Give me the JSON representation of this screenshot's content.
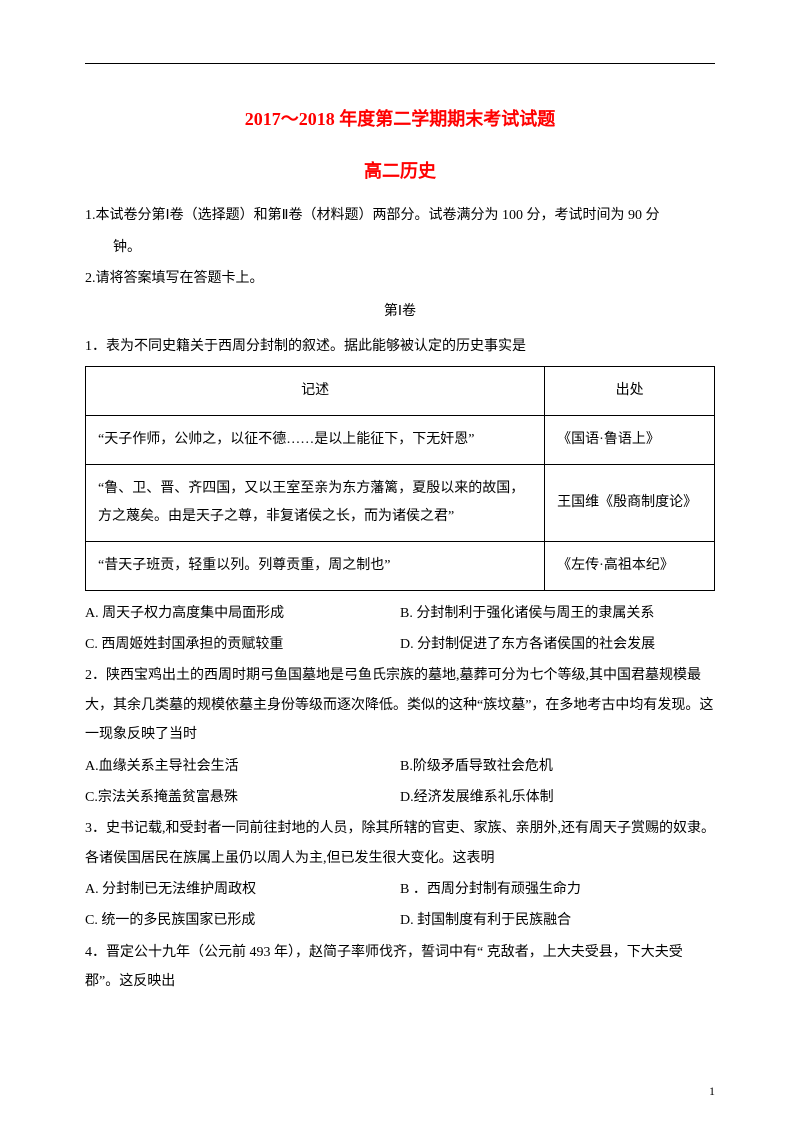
{
  "title": "2017～2018 年度第二学期期末考试试题",
  "subtitle": "高二历史",
  "instructions": {
    "line1": "1.本试卷分第Ⅰ卷（选择题）和第Ⅱ卷（材料题）两部分。试卷满分为 100 分，考试时间为 90 分",
    "line1b": "钟。",
    "line2": "2.请将答案填写在答题卡上。"
  },
  "section_label": "第Ⅰ卷",
  "q1": {
    "stem": "1．表为不同史籍关于西周分封制的叙述。据此能够被认定的历史事实是",
    "table": {
      "headers": {
        "desc": "记述",
        "src": "出处"
      },
      "rows": [
        {
          "desc": "“天子作师，公帅之，以征不德……是以上能征下，下无奸恩”",
          "src": "《国语·鲁语上》"
        },
        {
          "desc": "“鲁、卫、晋、齐四国，又以王室至亲为东方藩篱，夏殷以来的故国，方之蔑矣。由是天子之尊，非复诸侯之长，而为诸侯之君”",
          "src": "王国维《殷商制度论》"
        },
        {
          "desc": "“昔天子班贡，轻重以列。列尊贡重，周之制也”",
          "src": "《左传·高祖本纪》"
        }
      ]
    },
    "opts": {
      "a": "A. 周天子权力高度集中局面形成",
      "b": "B. 分封制利于强化诸侯与周王的隶属关系",
      "c": "C. 西周姬姓封国承担的贡赋较重",
      "d": "D. 分封制促进了东方各诸侯国的社会发展"
    }
  },
  "q2": {
    "stem": "2．陕西宝鸡出土的西周时期弓鱼国墓地是弓鱼氏宗族的墓地,墓葬可分为七个等级,其中国君墓规模最大，其余几类墓的规模依墓主身份等级而逐次降低。类似的这种“族坟墓”，在多地考古中均有发现。这一现象反映了当时",
    "opts": {
      "a": "A.血缘关系主导社会生活",
      "b": "B.阶级矛盾导致社会危机",
      "c": "C.宗法关系掩盖贫富悬殊",
      "d": "D.经济发展维系礼乐体制"
    }
  },
  "q3": {
    "stem": "3．史书记载,和受封者一同前往封地的人员，除其所辖的官吏、家族、亲朋外,还有周天子赏赐的奴隶。各诸侯国居民在族属上虽仍以周人为主,但已发生很大变化。这表明",
    "opts": {
      "a": "A. 分封制已无法维护周政权",
      "b": "B ．西周分封制有顽强生命力",
      "c": "C. 统一的多民族国家已形成",
      "d": "D. 封国制度有利于民族融合"
    }
  },
  "q4": {
    "stem": "4．晋定公十九年（公元前 493 年），赵简子率师伐齐，誓词中有“ 克敌者，上大夫受县，下大夫受郡”。这反映出"
  },
  "page_number": "1"
}
